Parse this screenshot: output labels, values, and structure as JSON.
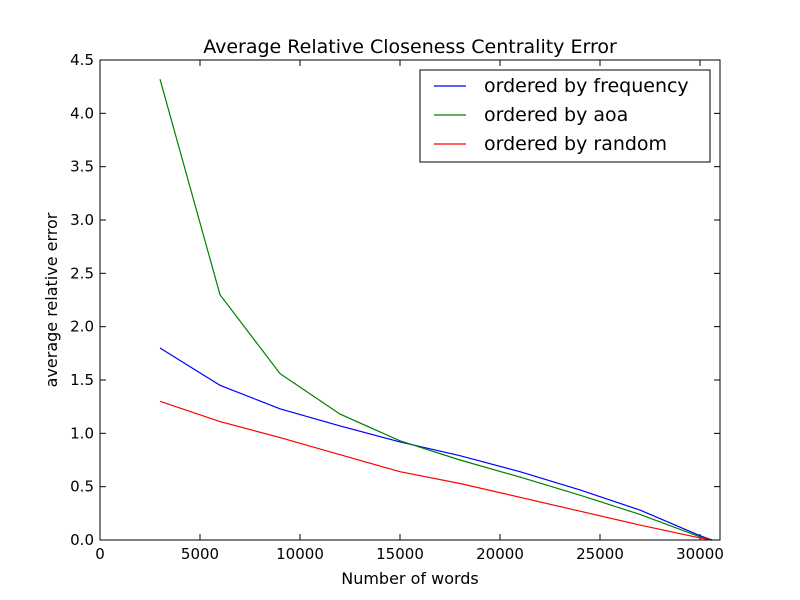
{
  "chart_data": {
    "type": "line",
    "title": "Average Relative Closeness Centrality Error",
    "xlabel": "Number of words",
    "ylabel": "average relative error",
    "xlim": [
      0,
      31000
    ],
    "ylim": [
      0.0,
      4.5
    ],
    "xticks": [
      "0",
      "5000",
      "10000",
      "15000",
      "20000",
      "25000",
      "30000"
    ],
    "yticks": [
      "0.0",
      "0.5",
      "1.0",
      "1.5",
      "2.0",
      "2.5",
      "3.0",
      "3.5",
      "4.0",
      "4.5"
    ],
    "grid": false,
    "legend_position": "top-right",
    "series": [
      {
        "name": "ordered by frequency",
        "color": "#0000ff",
        "x": [
          3000,
          6000,
          9000,
          12000,
          15000,
          18000,
          21000,
          24000,
          27000,
          30000,
          30600
        ],
        "y": [
          1.8,
          1.45,
          1.23,
          1.07,
          0.92,
          0.79,
          0.64,
          0.47,
          0.28,
          0.04,
          0.0
        ]
      },
      {
        "name": "ordered by aoa",
        "color": "#008000",
        "x": [
          3000,
          6000,
          9000,
          12000,
          15000,
          18000,
          21000,
          24000,
          27000,
          30000,
          30600
        ],
        "y": [
          4.32,
          2.3,
          1.56,
          1.18,
          0.93,
          0.75,
          0.59,
          0.42,
          0.24,
          0.03,
          0.0
        ]
      },
      {
        "name": "ordered by random",
        "color": "#ff0000",
        "x": [
          3000,
          6000,
          9000,
          12000,
          15000,
          18000,
          21000,
          24000,
          27000,
          30000,
          30600
        ],
        "y": [
          1.3,
          1.11,
          0.96,
          0.8,
          0.64,
          0.53,
          0.4,
          0.27,
          0.14,
          0.02,
          0.0
        ]
      }
    ]
  }
}
